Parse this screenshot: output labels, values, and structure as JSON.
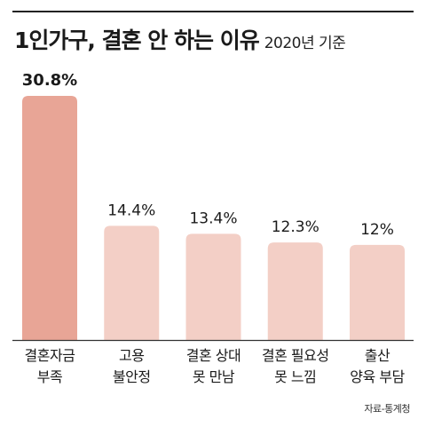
{
  "header": {
    "title": "1인가구, 결혼 안 하는 이유",
    "subtitle": "2020년 기준"
  },
  "footer": {
    "source": "자료-통계청"
  },
  "colors": {
    "highlight_bar": "#e8a596",
    "bar": "#f3cfc6",
    "baseline": "#333333"
  },
  "chart_data": {
    "type": "bar",
    "title": "1인가구, 결혼 안 하는 이유",
    "subtitle": "2020년 기준",
    "categories": [
      [
        "결혼자금",
        "부족"
      ],
      [
        "고용",
        "불안정"
      ],
      [
        "결혼 상대",
        "못 만남"
      ],
      [
        "결혼 필요성",
        "못 느낌"
      ],
      [
        "출산",
        "양육 부담"
      ]
    ],
    "values": [
      30.8,
      14.4,
      13.4,
      12.3,
      12
    ],
    "value_labels": [
      "30.8%",
      "14.4%",
      "13.4%",
      "12.3%",
      "12%"
    ],
    "unit": "%",
    "highlight_index": 0,
    "ylim": [
      0,
      30.8
    ],
    "grid": false,
    "legend": "none"
  }
}
